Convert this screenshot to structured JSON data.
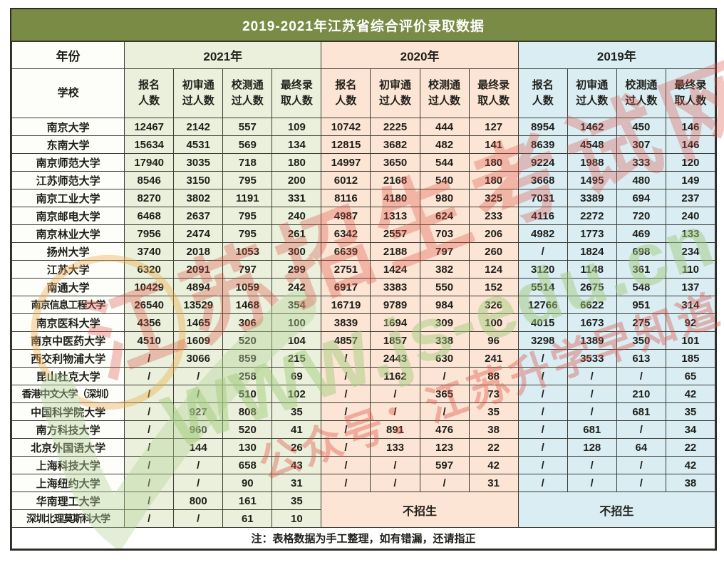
{
  "title": "2019-2021年江苏省综合评价录取数据",
  "header": {
    "year_label": "年份",
    "school_label": "学校",
    "years": [
      "2021年",
      "2020年",
      "2019年"
    ],
    "metrics": [
      "报名\n人数",
      "初审通\n过人数",
      "校测通\n过人数",
      "最终录\n取人数"
    ],
    "metric_names": [
      "applicants",
      "preliminary-passed",
      "school-test-passed",
      "final-admitted"
    ]
  },
  "section_colors": {
    "y2021": "#eaf0db",
    "y2020": "#fce5d4",
    "y2019": "#d9edf3",
    "title_bar": "#7a8b45"
  },
  "rows": [
    {
      "school": "南京大学",
      "y2021": [
        "12467",
        "2142",
        "557",
        "109"
      ],
      "y2020": [
        "10742",
        "2225",
        "444",
        "127"
      ],
      "y2019": [
        "8954",
        "1462",
        "450",
        "146"
      ]
    },
    {
      "school": "东南大学",
      "y2021": [
        "15634",
        "4531",
        "569",
        "134"
      ],
      "y2020": [
        "12815",
        "3682",
        "482",
        "141"
      ],
      "y2019": [
        "8639",
        "4548",
        "307",
        "146"
      ]
    },
    {
      "school": "南京师范大学",
      "y2021": [
        "17940",
        "3035",
        "718",
        "180"
      ],
      "y2020": [
        "14997",
        "3650",
        "544",
        "180"
      ],
      "y2019": [
        "9224",
        "1988",
        "333",
        "120"
      ]
    },
    {
      "school": "江苏师范大学",
      "y2021": [
        "8546",
        "3150",
        "795",
        "200"
      ],
      "y2020": [
        "6012",
        "2168",
        "540",
        "180"
      ],
      "y2019": [
        "3668",
        "1495",
        "480",
        "149"
      ]
    },
    {
      "school": "南京工业大学",
      "y2021": [
        "8270",
        "3802",
        "1191",
        "331"
      ],
      "y2020": [
        "8116",
        "4180",
        "980",
        "325"
      ],
      "y2019": [
        "7031",
        "3389",
        "694",
        "237"
      ]
    },
    {
      "school": "南京邮电大学",
      "y2021": [
        "6468",
        "2637",
        "795",
        "240"
      ],
      "y2020": [
        "4987",
        "1313",
        "624",
        "233"
      ],
      "y2019": [
        "4116",
        "2272",
        "720",
        "240"
      ]
    },
    {
      "school": "南京林业大学",
      "y2021": [
        "7956",
        "2474",
        "795",
        "261"
      ],
      "y2020": [
        "6342",
        "2557",
        "703",
        "206"
      ],
      "y2019": [
        "4982",
        "1773",
        "469",
        "133"
      ]
    },
    {
      "school": "扬州大学",
      "y2021": [
        "3740",
        "2018",
        "1053",
        "300"
      ],
      "y2020": [
        "6639",
        "2188",
        "797",
        "260"
      ],
      "y2019": [
        "/",
        "1824",
        "698",
        "234"
      ]
    },
    {
      "school": "江苏大学",
      "y2021": [
        "6320",
        "2091",
        "797",
        "299"
      ],
      "y2020": [
        "2751",
        "1424",
        "382",
        "124"
      ],
      "y2019": [
        "3120",
        "1148",
        "361",
        "110"
      ]
    },
    {
      "school": "南通大学",
      "y2021": [
        "10429",
        "4894",
        "1059",
        "242"
      ],
      "y2020": [
        "6917",
        "3383",
        "550",
        "152"
      ],
      "y2019": [
        "5514",
        "2675",
        "548",
        "137"
      ]
    },
    {
      "school": "南京信息工程大学",
      "y2021": [
        "26540",
        "13529",
        "1468",
        "354"
      ],
      "y2020": [
        "16719",
        "9789",
        "984",
        "326"
      ],
      "y2019": [
        "12766",
        "6622",
        "951",
        "314"
      ]
    },
    {
      "school": "南京医科大学",
      "y2021": [
        "4356",
        "1465",
        "306",
        "100"
      ],
      "y2020": [
        "3839",
        "1694",
        "309",
        "100"
      ],
      "y2019": [
        "4015",
        "1673",
        "275",
        "92"
      ]
    },
    {
      "school": "南京中医药大学",
      "y2021": [
        "4510",
        "1609",
        "520",
        "104"
      ],
      "y2020": [
        "4857",
        "1857",
        "338",
        "96"
      ],
      "y2019": [
        "3298",
        "1389",
        "350",
        "101"
      ]
    },
    {
      "school": "西交利物浦大学",
      "y2021": [
        "/",
        "3066",
        "859",
        "215"
      ],
      "y2020": [
        "/",
        "2443",
        "630",
        "241"
      ],
      "y2019": [
        "/",
        "3533",
        "613",
        "185"
      ]
    },
    {
      "school": "昆山杜克大学",
      "y2021": [
        "/",
        "/",
        "258",
        "69"
      ],
      "y2020": [
        "/",
        "1162",
        "/",
        "88"
      ],
      "y2019": [
        "/",
        "/",
        "/",
        "65"
      ]
    },
    {
      "school": "香港中文大学（深圳）",
      "y2021": [
        "/",
        "/",
        "510",
        "102"
      ],
      "y2020": [
        "/",
        "/",
        "365",
        "73"
      ],
      "y2019": [
        "/",
        "/",
        "210",
        "42"
      ]
    },
    {
      "school": "中国科学院大学",
      "y2021": [
        "/",
        "927",
        "808",
        "35"
      ],
      "y2020": [
        "/",
        "/",
        "/",
        "35"
      ],
      "y2019": [
        "/",
        "/",
        "681",
        "35"
      ]
    },
    {
      "school": "南方科技大学",
      "y2021": [
        "/",
        "960",
        "520",
        "41"
      ],
      "y2020": [
        "/",
        "891",
        "476",
        "38"
      ],
      "y2019": [
        "/",
        "681",
        "/",
        "34"
      ]
    },
    {
      "school": "北京外国语大学",
      "y2021": [
        "/",
        "144",
        "130",
        "26"
      ],
      "y2020": [
        "/",
        "133",
        "123",
        "22"
      ],
      "y2019": [
        "/",
        "128",
        "64",
        "22"
      ]
    },
    {
      "school": "上海科技大学",
      "y2021": [
        "/",
        "/",
        "658",
        "43"
      ],
      "y2020": [
        "/",
        "/",
        "597",
        "42"
      ],
      "y2019": [
        "/",
        "/",
        "/",
        "42"
      ]
    },
    {
      "school": "上海纽约大学",
      "y2021": [
        "/",
        "/",
        "90",
        "31"
      ],
      "y2020": [
        "/",
        "/",
        "/",
        "31"
      ],
      "y2019": [
        "/",
        "/",
        "/",
        "38"
      ]
    },
    {
      "school": "华南理工大学",
      "y2021": [
        "/",
        "800",
        "161",
        "35"
      ],
      "y2020": {
        "merged": "不招生",
        "rowspan": 2
      },
      "y2019": {
        "merged": "不招生",
        "rowspan": 2
      }
    },
    {
      "school": "深圳北理莫斯科大学",
      "y2021": [
        "/",
        "/",
        "61",
        "10"
      ],
      "y2020": {
        "continued": true
      },
      "y2019": {
        "continued": true
      }
    }
  ],
  "note": "注：表格数据为手工整理，如有错漏，还请指正",
  "watermark": {
    "site_name": "江苏招生考试网",
    "site_url": "WWW.js-edu.cn",
    "wechat": "公众号：江苏升学早知道",
    "red": "#dd5044",
    "green": "#a3cb7d",
    "orange": "#ecaf52"
  }
}
